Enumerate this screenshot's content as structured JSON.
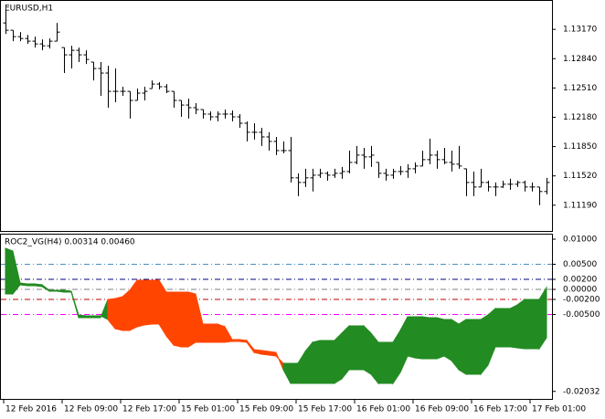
{
  "chart_data": [
    {
      "type": "ohlc",
      "title": "EURUSD,H1",
      "color": "#000000",
      "categories": [
        "12 Feb 2016",
        null,
        null,
        null,
        null,
        null,
        null,
        null,
        "12 Feb 09:00",
        null,
        null,
        null,
        null,
        null,
        null,
        null,
        "12 Feb 17:00",
        null,
        null,
        null,
        null,
        null,
        null,
        null,
        "15 Feb 01:00",
        null,
        null,
        null,
        null,
        null,
        null,
        null,
        "15 Feb 09:00",
        null,
        null,
        null,
        null,
        null,
        null,
        null,
        "15 Feb 17:00",
        null,
        null,
        null,
        null,
        null,
        null,
        null,
        "16 Feb 01:00",
        null,
        null,
        null,
        null,
        null,
        null,
        null,
        "16 Feb 09:00",
        null,
        null,
        null,
        null,
        null,
        null,
        null,
        "16 Feb 17:00",
        null,
        null,
        null,
        null,
        null,
        null,
        null,
        "17 Feb 01:00",
        null,
        null
      ],
      "open": [
        1.13242,
        1.1316,
        1.13088,
        1.13067,
        1.13037,
        1.13006,
        1.12985,
        1.13037,
        1.12965,
        1.12883,
        1.12934,
        1.12883,
        1.12801,
        1.12729,
        1.12678,
        1.12472,
        1.12472,
        1.12472,
        1.1237,
        1.12452,
        1.12503,
        1.12554,
        1.12524,
        1.12472,
        1.1237,
        1.12318,
        1.12288,
        1.12267,
        1.12216,
        1.12185,
        1.12216,
        1.12216,
        1.12185,
        1.12113,
        1.12011,
        1.12011,
        1.11959,
        1.11908,
        1.11805,
        1.11805,
        1.11498,
        1.11446,
        1.11498,
        1.11528,
        1.11549,
        1.11528,
        1.11549,
        1.11569,
        1.11672,
        1.11754,
        1.11734,
        1.11672,
        1.11549,
        1.11528,
        1.11569,
        1.11569,
        1.116,
        1.11631,
        1.11703,
        1.11754,
        1.11703,
        1.11672,
        1.11652,
        1.116,
        1.11446,
        1.11395,
        1.11446,
        1.11395,
        1.11395,
        1.11426,
        1.11426,
        1.11446,
        1.11395,
        1.11395,
        1.11344
      ],
      "high": [
        1.13396,
        1.1316,
        1.13139,
        1.13108,
        1.13088,
        1.13057,
        1.13067,
        1.13242,
        1.12965,
        1.12985,
        1.12965,
        1.12934,
        1.12801,
        1.12801,
        1.1276,
        1.12729,
        1.12524,
        1.12472,
        1.12503,
        1.12524,
        1.12595,
        1.12575,
        1.12554,
        1.12472,
        1.1237,
        1.1239,
        1.12339,
        1.12267,
        1.12247,
        1.12247,
        1.12267,
        1.12257,
        1.12216,
        1.12134,
        1.12113,
        1.12062,
        1.12011,
        1.11959,
        1.11908,
        1.11959,
        1.11549,
        1.116,
        1.116,
        1.116,
        1.11569,
        1.116,
        1.11621,
        1.11805,
        1.11857,
        1.11836,
        1.11857,
        1.11672,
        1.116,
        1.116,
        1.11631,
        1.11652,
        1.11672,
        1.11805,
        1.11939,
        1.11805,
        1.11836,
        1.11805,
        1.11857,
        1.116,
        1.11569,
        1.116,
        1.11467,
        1.11446,
        1.11467,
        1.11487,
        1.11467,
        1.11467,
        1.11446,
        1.11395,
        1.11498
      ],
      "low": [
        1.13119,
        1.13037,
        1.13037,
        1.13006,
        1.12965,
        1.12934,
        1.12955,
        1.13037,
        1.12678,
        1.12729,
        1.12801,
        1.1278,
        1.12595,
        1.12421,
        1.12288,
        1.12349,
        1.12421,
        1.12165,
        1.1237,
        1.1237,
        1.12503,
        1.12493,
        1.12452,
        1.12288,
        1.12185,
        1.12165,
        1.12216,
        1.12165,
        1.12144,
        1.12134,
        1.12165,
        1.12134,
        1.12062,
        1.11908,
        1.11929,
        1.11857,
        1.11805,
        1.11754,
        1.11775,
        1.11446,
        1.11292,
        1.11395,
        1.11344,
        1.11498,
        1.11467,
        1.11498,
        1.11487,
        1.11549,
        1.11652,
        1.116,
        1.11621,
        1.11498,
        1.11467,
        1.11487,
        1.11528,
        1.11498,
        1.11549,
        1.11631,
        1.11652,
        1.116,
        1.11652,
        1.11569,
        1.116,
        1.11292,
        1.11292,
        1.11395,
        1.11344,
        1.11292,
        1.11385,
        1.11364,
        1.11395,
        1.11344,
        1.11344,
        1.1119,
        1.11313
      ],
      "close": [
        1.1316,
        1.13088,
        1.13067,
        1.13037,
        1.13006,
        1.12985,
        1.13037,
        1.13139,
        1.12883,
        1.12934,
        1.12883,
        1.12831,
        1.12729,
        1.12678,
        1.12472,
        1.12472,
        1.12472,
        1.1237,
        1.12452,
        1.12472,
        1.12554,
        1.12524,
        1.12472,
        1.1237,
        1.12318,
        1.12288,
        1.12267,
        1.12216,
        1.12185,
        1.12216,
        1.12216,
        1.12185,
        1.12113,
        1.12011,
        1.12011,
        1.11959,
        1.11908,
        1.11805,
        1.11805,
        1.11498,
        1.11446,
        1.11498,
        1.11528,
        1.11549,
        1.11528,
        1.11549,
        1.11569,
        1.11672,
        1.11754,
        1.11734,
        1.11754,
        1.11549,
        1.11528,
        1.11569,
        1.11569,
        1.116,
        1.11631,
        1.11703,
        1.11754,
        1.11703,
        1.11672,
        1.11652,
        1.11631,
        1.11446,
        1.11395,
        1.11446,
        1.11395,
        1.11395,
        1.11426,
        1.11426,
        1.11446,
        1.11395,
        1.11395,
        1.11344,
        1.11446
      ],
      "ylim": [
        1.109,
        1.1348
      ],
      "yticks": [
        {
          "value": 1.1317,
          "label": "1.13170"
        },
        {
          "value": 1.1284,
          "label": "1.12840"
        },
        {
          "value": 1.1251,
          "label": "1.12510"
        },
        {
          "value": 1.1218,
          "label": "1.12180"
        },
        {
          "value": 1.1185,
          "label": "1.11850"
        },
        {
          "value": 1.1152,
          "label": "1.11520"
        },
        {
          "value": 1.1119,
          "label": "1.11190"
        }
      ]
    },
    {
      "type": "band",
      "title": "ROC2_VG(H4) 0.00314 0.00460",
      "up_color": "#228b22",
      "down_color": "#ff4500",
      "series": [
        {
          "values": [
            0.00818,
            0.00764,
            0.00127,
            0.00109,
            0.00109,
            0.00091,
            -0.00018,
            -0.00018,
            -0.00018,
            -0.00036,
            -0.00509,
            -0.00527,
            -0.00527,
            -0.00527,
            -0.006,
            -0.00782,
            -0.00818,
            -0.00818,
            -0.00745,
            -0.00709,
            -0.00691,
            -0.00691,
            -0.00927,
            -0.01109,
            -0.01145,
            -0.01145,
            -0.01055,
            -0.01055,
            -0.01055,
            -0.01055,
            -0.01055,
            -0.01036,
            -0.01036,
            -0.01055,
            -0.01255,
            -0.01291,
            -0.01309,
            -0.01327,
            -0.01473,
            -0.01473,
            -0.01473,
            -0.01236,
            -0.01055,
            -0.01018,
            -0.01018,
            -0.01018,
            -0.00873,
            -0.00727,
            -0.00727,
            -0.00727,
            -0.00873,
            -0.01055,
            -0.01055,
            -0.01055,
            -0.00818,
            -0.00545,
            -0.00545,
            -0.00545,
            -0.00564,
            -0.00564,
            -0.006,
            -0.006,
            -0.00691,
            -0.006,
            -0.006,
            -0.006,
            -0.00509,
            -0.00382,
            -0.00382,
            -0.00382,
            -0.00309,
            -0.002,
            -0.002,
            -0.002,
            0.00036
          ]
        },
        {
          "values": [
            -0.00091,
            -0.00091,
            0.00091,
            0.00073,
            0.00073,
            0.00055,
            -0.00036,
            -0.00036,
            -0.00055,
            -0.00055,
            -0.00564,
            -0.00564,
            -0.00564,
            -0.00564,
            -0.002,
            -0.00182,
            -0.00145,
            -0.00018,
            0.00182,
            0.00182,
            0.00182,
            0.00182,
            -0.00055,
            -0.00055,
            -0.00055,
            -0.00055,
            -0.00091,
            -0.00691,
            -0.00691,
            -0.00691,
            -0.00745,
            -0.01,
            -0.01,
            -0.01018,
            -0.012,
            -0.01218,
            -0.01236,
            -0.01255,
            -0.016,
            -0.01873,
            -0.01873,
            -0.01873,
            -0.01873,
            -0.01873,
            -0.01873,
            -0.01873,
            -0.01782,
            -0.016,
            -0.016,
            -0.016,
            -0.01691,
            -0.01873,
            -0.01873,
            -0.01873,
            -0.01655,
            -0.01327,
            -0.01364,
            -0.01382,
            -0.01382,
            -0.01382,
            -0.01327,
            -0.01418,
            -0.016,
            -0.01691,
            -0.01691,
            -0.01691,
            -0.01509,
            -0.01145,
            -0.01145,
            -0.01145,
            -0.01164,
            -0.01182,
            -0.01182,
            -0.01182,
            -0.00964
          ]
        }
      ],
      "levels": [
        {
          "value": 0.005,
          "color": "#4a90c0"
        },
        {
          "value": 0.002,
          "color": "#000080"
        },
        {
          "value": 0,
          "color": "#808080"
        },
        {
          "value": -0.002,
          "color": "#c00000"
        },
        {
          "value": -0.005,
          "color": "#ff00ff"
        }
      ],
      "ylim": [
        -0.02182,
        0.01073
      ],
      "yticks": [
        {
          "value": 0.01,
          "label": "0.01000"
        },
        {
          "value": 0.005,
          "label": "0.00500"
        },
        {
          "value": 0.002,
          "label": "0.00200"
        },
        {
          "value": 0,
          "label": "0.00000"
        },
        {
          "value": -0.002,
          "label": "-0.00200"
        },
        {
          "value": -0.005,
          "label": "-0.00500"
        },
        {
          "value": -0.02032,
          "label": "-0.02032"
        }
      ]
    }
  ]
}
